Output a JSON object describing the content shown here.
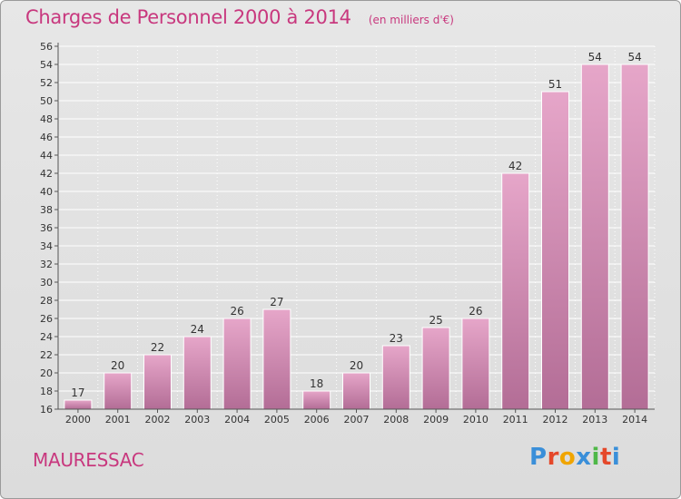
{
  "header": {
    "title": "Charges de Personnel 2000 à 2014",
    "subtitle": "(en milliers d'€)"
  },
  "footer": {
    "commune": "MAURESSAC",
    "logo": "Proxiti",
    "logo_colors": [
      "#3a8fd9",
      "#e5482a",
      "#f0a500",
      "#3a8fd9",
      "#4fb848",
      "#e5482a",
      "#3a8fd9"
    ]
  },
  "colors": {
    "bar": "#d98cb4",
    "bar_dark": "#b86b96",
    "title": "#c8387e"
  },
  "chart_data": {
    "type": "bar",
    "title": "Charges de Personnel 2000 à 2014",
    "subtitle": "(en milliers d'€)",
    "categories": [
      "2000",
      "2001",
      "2002",
      "2003",
      "2004",
      "2005",
      "2006",
      "2007",
      "2008",
      "2009",
      "2010",
      "2011",
      "2012",
      "2013",
      "2014"
    ],
    "values": [
      17,
      20,
      22,
      24,
      26,
      27,
      18,
      20,
      23,
      25,
      26,
      42,
      51,
      54,
      54
    ],
    "ylim": [
      16,
      56
    ],
    "yticks": [
      16,
      18,
      20,
      22,
      24,
      26,
      28,
      30,
      32,
      34,
      36,
      38,
      40,
      42,
      44,
      46,
      48,
      50,
      52,
      54,
      56
    ],
    "xlabel": "",
    "ylabel": "",
    "grid": true
  }
}
